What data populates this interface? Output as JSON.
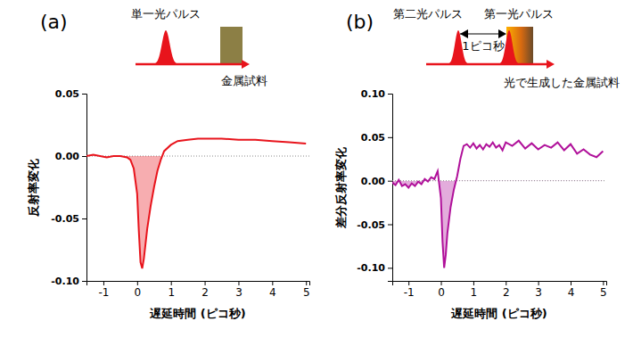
{
  "chart_data": [
    {
      "type": "line",
      "title": "(a)",
      "annotations": [
        "単一光パルス",
        "金属試料"
      ],
      "x_label": "遅延時間 (ピコ秒)",
      "y_label": "反射率変化",
      "x": [
        -1.5,
        -1.3,
        -1.1,
        -0.9,
        -0.7,
        -0.5,
        -0.3,
        -0.2,
        -0.1,
        0,
        0.05,
        0.1,
        0.15,
        0.2,
        0.25,
        0.3,
        0.4,
        0.5,
        0.6,
        0.7,
        0.8,
        1.0,
        1.2,
        1.5,
        1.8,
        2.1,
        2.5,
        3,
        3.5,
        4,
        4.5,
        5
      ],
      "series": [
        {
          "color": "#e8141c",
          "values": [
            0,
            0.001,
            0,
            -0.001,
            0,
            0,
            -0.001,
            -0.003,
            -0.01,
            -0.03,
            -0.06,
            -0.085,
            -0.09,
            -0.082,
            -0.07,
            -0.058,
            -0.04,
            -0.025,
            -0.012,
            -0.003,
            0.004,
            0.009,
            0.012,
            0.013,
            0.014,
            0.014,
            0.014,
            0.013,
            0.013,
            0.012,
            0.011,
            0.01
          ]
        }
      ],
      "baseline": 0,
      "xlim": [
        -1.5,
        5.1
      ],
      "xticks": [
        -1,
        0,
        1,
        2,
        3,
        4,
        5
      ],
      "ylim": [
        -0.1,
        0.05
      ],
      "yticks": [
        {
          "value": -0.1,
          "label": "-0.10"
        },
        -0.05,
        {
          "value": 0,
          "label": "0.00"
        },
        0.05
      ]
    },
    {
      "type": "line",
      "title": "(b)",
      "annotations": [
        "第二光パルス",
        "第一光パルス",
        "1ピコ秒",
        "光で生成した金属試料"
      ],
      "x_label": "遅延時間 (ピコ秒)",
      "y_label": "差分反射率変化",
      "x": [
        -1.5,
        -1.4,
        -1.3,
        -1.2,
        -1.1,
        -1.0,
        -0.9,
        -0.8,
        -0.7,
        -0.6,
        -0.5,
        -0.4,
        -0.3,
        -0.2,
        -0.1,
        0,
        0.05,
        0.1,
        0.15,
        0.2,
        0.3,
        0.4,
        0.5,
        0.6,
        0.7,
        0.8,
        0.9,
        1.0,
        1.1,
        1.2,
        1.3,
        1.4,
        1.5,
        1.6,
        1.7,
        1.8,
        1.9,
        2.0,
        2.2,
        2.4,
        2.6,
        2.8,
        3.0,
        3.2,
        3.4,
        3.6,
        3.8,
        4.0,
        4.2,
        4.4,
        4.6,
        4.8,
        5.0
      ],
      "series": [
        {
          "color": "#b0119a",
          "values": [
            -0.002,
            -0.005,
            0.001,
            -0.006,
            -0.004,
            -0.008,
            -0.003,
            -0.006,
            -0.001,
            -0.004,
            0.002,
            -0.001,
            0.004,
            0.002,
            0.011,
            -0.02,
            -0.07,
            -0.1,
            -0.085,
            -0.06,
            -0.03,
            -0.01,
            0.005,
            0.025,
            0.04,
            0.042,
            0.038,
            0.043,
            0.037,
            0.041,
            0.036,
            0.042,
            0.039,
            0.044,
            0.038,
            0.041,
            0.035,
            0.044,
            0.04,
            0.046,
            0.037,
            0.043,
            0.036,
            0.041,
            0.038,
            0.044,
            0.035,
            0.042,
            0.031,
            0.036,
            0.03,
            0.027,
            0.034
          ]
        }
      ],
      "baseline": 0,
      "xlim": [
        -1.5,
        5.1
      ],
      "xticks": [
        -1,
        0,
        1,
        2,
        3,
        4,
        5
      ],
      "ylim": [
        -0.115,
        0.1
      ],
      "yticks": [
        {
          "value": -0.1,
          "label": "-0.10"
        },
        -0.05,
        {
          "value": 0,
          "label": "0.00"
        },
        0.05,
        {
          "value": 0.1,
          "label": "0.10"
        }
      ]
    }
  ]
}
